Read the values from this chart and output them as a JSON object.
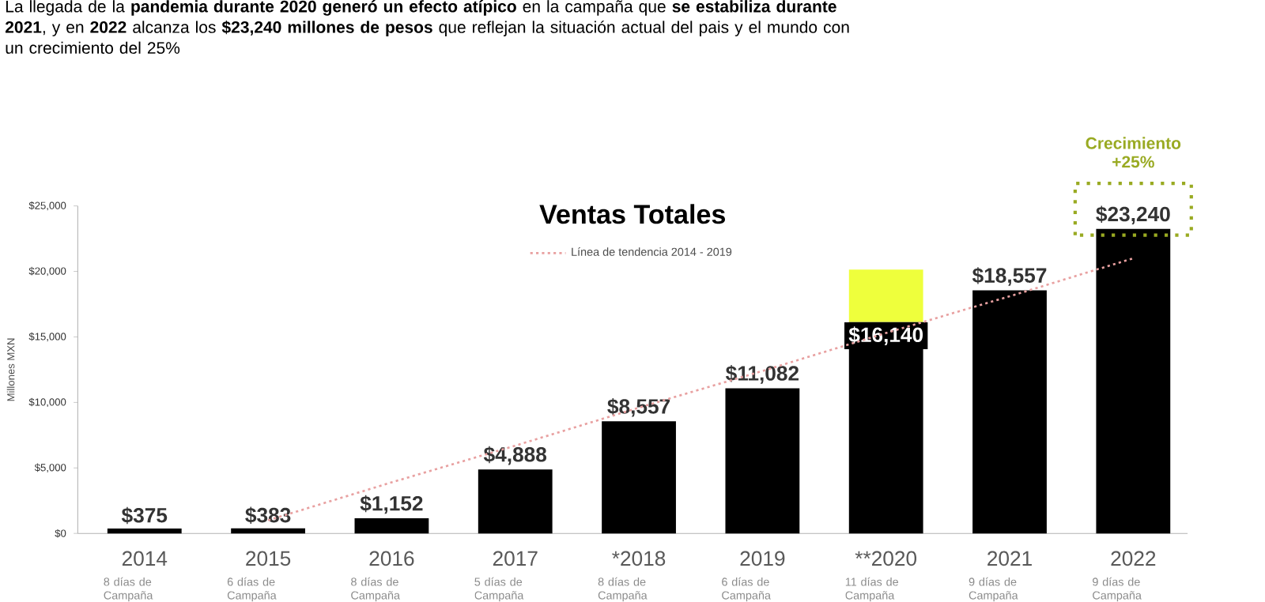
{
  "chart_data": {
    "type": "bar",
    "title": "Ventas Totales",
    "ylabel": "Millones MXN",
    "categories": [
      "2014",
      "2015",
      "2016",
      "2017",
      "*2018",
      "2019",
      "**2020",
      "2021",
      "2022"
    ],
    "stacked": true,
    "series": [
      {
        "color": "#000000",
        "values": [
          375,
          383,
          1152,
          4888,
          8557,
          11082,
          16140,
          18557,
          23240
        ],
        "value_labels": [
          "$375",
          "$383",
          "$1,152",
          "$4,888",
          "$8,557",
          "$11,082",
          "$16,140",
          "$18,557",
          "$23,240"
        ]
      },
      {
        "color": "#eeff3c",
        "values": [
          null,
          null,
          null,
          null,
          null,
          null,
          4000,
          null,
          null
        ]
      },
      {
        "type": "line",
        "name": "Línea de tendencia 2014 - 2019",
        "color": "#e8a0a0",
        "line_style": "dotted",
        "values": [
          null,
          1000,
          3900,
          6700,
          9600,
          12400,
          15300,
          18100,
          21000
        ]
      }
    ],
    "ylim": [
      0,
      25000
    ],
    "yticks": [
      {
        "value": 0,
        "label": "$0"
      },
      {
        "value": 5000,
        "label": "$5,000"
      },
      {
        "value": 10000,
        "label": "$10,000"
      },
      {
        "value": 15000,
        "label": "$15,000"
      },
      {
        "value": 20000,
        "label": "$20,000"
      },
      {
        "value": 25000,
        "label": "$25,000"
      }
    ],
    "legend": "top",
    "annotations": [
      "La llegada de la **pandemia durante 2020 generó un efecto atípico** en la campaña que **se estabiliza durante 2021**, y en **2022** alcanza los **$23,240 millones de pesos** que reflejan la situación actual del pais y el  mundo con un crecimiento del 25%",
      "Crecimiento +25%",
      "8 días de Campaña",
      "6 días de Campaña",
      "8 días de Campaña",
      "5 días de Campaña",
      "8 días de Campaña",
      "6 días de Campaña",
      "11 días de Campaña",
      "9 días de Campaña",
      "9 días de Campaña"
    ]
  }
}
